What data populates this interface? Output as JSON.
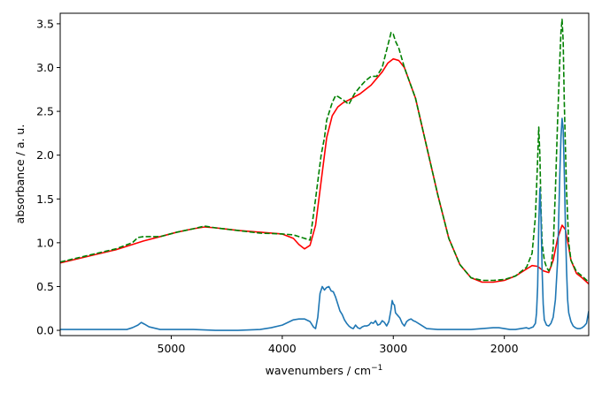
{
  "chart_data": {
    "type": "line",
    "title": "",
    "xlabel": "wavenumbers / cm",
    "xlabel_superscript": "−1",
    "ylabel": "absorbance / a. u.",
    "xlim": [
      6000,
      1240
    ],
    "ylim": [
      -0.06,
      3.62
    ],
    "x_reversed": true,
    "grid": false,
    "legend": "none",
    "x_ticks": [
      {
        "value": 5000,
        "label": "5000"
      },
      {
        "value": 4000,
        "label": "4000"
      },
      {
        "value": 3000,
        "label": "3000"
      },
      {
        "value": 2000,
        "label": "2000"
      }
    ],
    "y_ticks": [
      {
        "value": 0.0,
        "label": "0.0"
      },
      {
        "value": 0.5,
        "label": "0.5"
      },
      {
        "value": 1.0,
        "label": "1.0"
      },
      {
        "value": 1.5,
        "label": "1.5"
      },
      {
        "value": 2.0,
        "label": "2.0"
      },
      {
        "value": 2.5,
        "label": "2.5"
      },
      {
        "value": 3.0,
        "label": "3.0"
      },
      {
        "value": 3.5,
        "label": "3.5"
      }
    ],
    "series": [
      {
        "color": "#ff0000",
        "style": "solid",
        "x": [
          6000,
          5700,
          5500,
          5350,
          5250,
          5100,
          4950,
          4800,
          4700,
          4600,
          4400,
          4200,
          4000,
          3900,
          3850,
          3800,
          3750,
          3700,
          3650,
          3600,
          3550,
          3500,
          3450,
          3400,
          3300,
          3200,
          3100,
          3050,
          3000,
          2950,
          2900,
          2800,
          2700,
          2600,
          2500,
          2400,
          2300,
          2200,
          2100,
          2000,
          1900,
          1800,
          1750,
          1700,
          1650,
          1600,
          1560,
          1520,
          1480,
          1450,
          1420,
          1400,
          1350,
          1300,
          1240
        ],
        "y": [
          0.77,
          0.86,
          0.92,
          0.98,
          1.02,
          1.07,
          1.12,
          1.16,
          1.18,
          1.17,
          1.14,
          1.12,
          1.1,
          1.05,
          0.98,
          0.93,
          0.97,
          1.2,
          1.7,
          2.2,
          2.45,
          2.55,
          2.6,
          2.63,
          2.7,
          2.8,
          2.95,
          3.05,
          3.1,
          3.08,
          3.0,
          2.65,
          2.1,
          1.55,
          1.05,
          0.75,
          0.6,
          0.55,
          0.55,
          0.57,
          0.62,
          0.7,
          0.74,
          0.73,
          0.68,
          0.66,
          0.8,
          1.05,
          1.2,
          1.15,
          0.95,
          0.8,
          0.65,
          0.6,
          0.53
        ]
      },
      {
        "color": "#008000",
        "style": "dashed",
        "x": [
          6000,
          5700,
          5500,
          5350,
          5300,
          5250,
          5100,
          4950,
          4800,
          4700,
          4600,
          4400,
          4200,
          4000,
          3900,
          3800,
          3750,
          3700,
          3650,
          3620,
          3600,
          3550,
          3520,
          3500,
          3450,
          3400,
          3350,
          3300,
          3250,
          3200,
          3150,
          3100,
          3050,
          3020,
          3000,
          2980,
          2950,
          2900,
          2800,
          2700,
          2600,
          2500,
          2400,
          2300,
          2200,
          2100,
          2000,
          1900,
          1800,
          1750,
          1720,
          1700,
          1690,
          1680,
          1670,
          1660,
          1640,
          1620,
          1600,
          1580,
          1560,
          1540,
          1520,
          1500,
          1490,
          1480,
          1470,
          1460,
          1440,
          1420,
          1400,
          1350,
          1300,
          1240
        ],
        "y": [
          0.78,
          0.87,
          0.93,
          1.0,
          1.06,
          1.07,
          1.07,
          1.12,
          1.16,
          1.19,
          1.17,
          1.14,
          1.11,
          1.1,
          1.09,
          1.05,
          1.03,
          1.5,
          2.0,
          2.2,
          2.4,
          2.6,
          2.68,
          2.67,
          2.63,
          2.58,
          2.7,
          2.78,
          2.85,
          2.9,
          2.9,
          3.0,
          3.25,
          3.4,
          3.38,
          3.3,
          3.22,
          3.0,
          2.65,
          2.1,
          1.55,
          1.05,
          0.75,
          0.6,
          0.57,
          0.57,
          0.58,
          0.62,
          0.72,
          0.88,
          1.3,
          1.95,
          2.32,
          2.0,
          1.4,
          1.0,
          0.8,
          0.72,
          0.68,
          0.72,
          0.95,
          1.6,
          2.4,
          3.1,
          3.4,
          3.55,
          3.3,
          2.6,
          1.6,
          1.0,
          0.8,
          0.67,
          0.62,
          0.55
        ]
      },
      {
        "color": "#1f77b4",
        "style": "solid",
        "x": [
          6000,
          5800,
          5600,
          5400,
          5350,
          5300,
          5270,
          5240,
          5200,
          5100,
          5000,
          4800,
          4600,
          4400,
          4200,
          4100,
          4000,
          3950,
          3900,
          3850,
          3800,
          3750,
          3720,
          3700,
          3680,
          3660,
          3640,
          3620,
          3600,
          3580,
          3560,
          3540,
          3520,
          3500,
          3480,
          3460,
          3440,
          3420,
          3400,
          3380,
          3360,
          3340,
          3320,
          3300,
          3280,
          3260,
          3240,
          3220,
          3200,
          3180,
          3160,
          3140,
          3120,
          3100,
          3080,
          3060,
          3040,
          3020,
          3010,
          3000,
          2990,
          2980,
          2960,
          2940,
          2920,
          2900,
          2880,
          2860,
          2840,
          2820,
          2800,
          2750,
          2700,
          2600,
          2500,
          2400,
          2300,
          2200,
          2100,
          2050,
          2000,
          1950,
          1900,
          1850,
          1800,
          1780,
          1760,
          1740,
          1720,
          1710,
          1700,
          1690,
          1680,
          1670,
          1660,
          1650,
          1640,
          1620,
          1600,
          1580,
          1560,
          1540,
          1520,
          1510,
          1500,
          1490,
          1480,
          1470,
          1460,
          1450,
          1440,
          1430,
          1420,
          1400,
          1380,
          1360,
          1340,
          1320,
          1300,
          1280,
          1260,
          1240
        ],
        "y": [
          0.01,
          0.01,
          0.01,
          0.01,
          0.03,
          0.06,
          0.09,
          0.07,
          0.04,
          0.01,
          0.01,
          0.01,
          0.0,
          0.0,
          0.01,
          0.03,
          0.06,
          0.09,
          0.12,
          0.13,
          0.13,
          0.1,
          0.04,
          0.02,
          0.15,
          0.42,
          0.5,
          0.46,
          0.49,
          0.5,
          0.45,
          0.44,
          0.38,
          0.3,
          0.22,
          0.18,
          0.12,
          0.08,
          0.05,
          0.03,
          0.02,
          0.06,
          0.03,
          0.02,
          0.04,
          0.05,
          0.05,
          0.06,
          0.09,
          0.08,
          0.11,
          0.06,
          0.07,
          0.11,
          0.09,
          0.05,
          0.1,
          0.24,
          0.34,
          0.3,
          0.29,
          0.2,
          0.17,
          0.14,
          0.08,
          0.05,
          0.1,
          0.12,
          0.13,
          0.11,
          0.1,
          0.06,
          0.02,
          0.01,
          0.01,
          0.01,
          0.01,
          0.02,
          0.03,
          0.03,
          0.02,
          0.01,
          0.01,
          0.02,
          0.03,
          0.02,
          0.03,
          0.04,
          0.08,
          0.2,
          0.5,
          1.2,
          1.62,
          1.3,
          0.7,
          0.3,
          0.12,
          0.06,
          0.05,
          0.08,
          0.15,
          0.35,
          0.8,
          1.3,
          1.8,
          2.2,
          2.42,
          2.3,
          1.8,
          1.2,
          0.7,
          0.35,
          0.2,
          0.1,
          0.05,
          0.03,
          0.02,
          0.02,
          0.03,
          0.05,
          0.08,
          0.22
        ]
      }
    ]
  }
}
